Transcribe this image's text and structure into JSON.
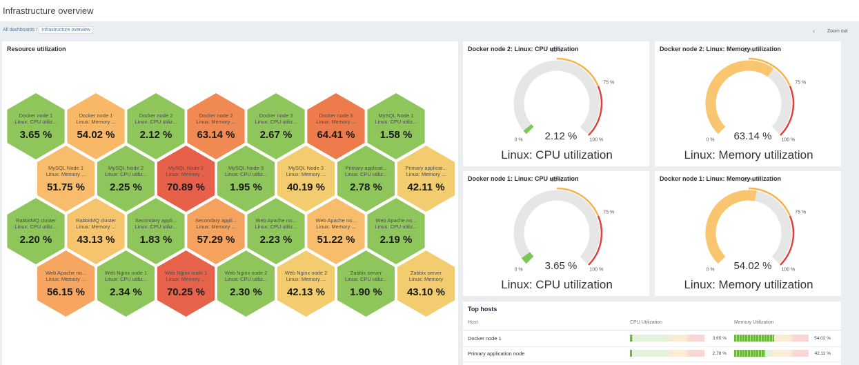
{
  "header": {
    "title": "Infrastructure overview",
    "breadcrumbs": [
      "All dashboards",
      "Infrastructure overview"
    ],
    "breadcrumb_separator": "/",
    "zoom_out": "Zoom out"
  },
  "honeycomb": {
    "title": "Resource utilization",
    "cells": [
      {
        "host": "Docker node 1",
        "item": "Linux: CPU utiliz...",
        "value": 3.65,
        "label": "3.65 %",
        "color": "#8ec65b"
      },
      {
        "host": "Docker node 1",
        "item": "Linux: Memory ...",
        "value": 54.02,
        "label": "54.02 %",
        "color": "#f8b867"
      },
      {
        "host": "Docker node 2",
        "item": "Linux: CPU utiliz...",
        "value": 2.12,
        "label": "2.12 %",
        "color": "#8ec65b"
      },
      {
        "host": "Docker node 2",
        "item": "Linux: Memory ...",
        "value": 63.14,
        "label": "63.14 %",
        "color": "#f08a52"
      },
      {
        "host": "Docker node 3",
        "item": "Linux: CPU utiliz...",
        "value": 2.67,
        "label": "2.67 %",
        "color": "#8ec65b"
      },
      {
        "host": "Docker node 3",
        "item": "Linux: Memory ...",
        "value": 64.41,
        "label": "64.41 %",
        "color": "#ee7b4c"
      },
      {
        "host": "MySQL Node 1",
        "item": "Linux: CPU utiliz...",
        "value": 1.58,
        "label": "1.58 %",
        "color": "#8ec65b"
      },
      {
        "host": "MySQL Node 1",
        "item": "Linux: Memory ...",
        "value": 51.75,
        "label": "51.75 %",
        "color": "#f8bd6c"
      },
      {
        "host": "MySQL Node 2",
        "item": "Linux: CPU utiliz...",
        "value": 2.25,
        "label": "2.25 %",
        "color": "#8ec65b"
      },
      {
        "host": "MySQL Node 2",
        "item": "Linux: Memory ...",
        "value": 70.89,
        "label": "70.89 %",
        "color": "#e6604a"
      },
      {
        "host": "MySQL Node 3",
        "item": "Linux: CPU utiliz...",
        "value": 1.95,
        "label": "1.95 %",
        "color": "#8ec65b"
      },
      {
        "host": "MySQL Node 3",
        "item": "Linux: Memory ...",
        "value": 40.19,
        "label": "40.19 %",
        "color": "#f3cc70"
      },
      {
        "host": "Primary applicat...",
        "item": "Linux: CPU utiliz...",
        "value": 2.78,
        "label": "2.78 %",
        "color": "#8ec65b"
      },
      {
        "host": "Primary applicat...",
        "item": "Linux: Memory ...",
        "value": 42.11,
        "label": "42.11 %",
        "color": "#f3cc70"
      },
      {
        "host": "RabbitMQ cluster",
        "item": "Linux: CPU utiliz...",
        "value": 2.2,
        "label": "2.20 %",
        "color": "#8ec65b"
      },
      {
        "host": "RabbitMQ cluster",
        "item": "Linux: Memory ...",
        "value": 43.13,
        "label": "43.13 %",
        "color": "#f6c46d"
      },
      {
        "host": "Secondary appli...",
        "item": "Linux: CPU utiliz...",
        "value": 1.83,
        "label": "1.83 %",
        "color": "#8ec65b"
      },
      {
        "host": "Secondary appli...",
        "item": "Linux: Memory ...",
        "value": 57.29,
        "label": "57.29 %",
        "color": "#f5a25e"
      },
      {
        "host": "Web Apache no...",
        "item": "Linux: CPU utiliz...",
        "value": 2.23,
        "label": "2.23 %",
        "color": "#8ec65b"
      },
      {
        "host": "Web Apache no...",
        "item": "Linux: Memory ...",
        "value": 51.22,
        "label": "51.22 %",
        "color": "#f8bd6c"
      },
      {
        "host": "Web Apache no...",
        "item": "Linux: CPU utiliz...",
        "value": 2.19,
        "label": "2.19 %",
        "color": "#8ec65b"
      },
      {
        "host": "Web Apache no...",
        "item": "Linux: Memory ...",
        "value": 56.15,
        "label": "56.15 %",
        "color": "#f6a660"
      },
      {
        "host": "Web Nginx node 1",
        "item": "Linux: CPU utiliz...",
        "value": 2.34,
        "label": "2.34 %",
        "color": "#8ec65b"
      },
      {
        "host": "Web Nginx node 1",
        "item": "Linux: Memory ...",
        "value": 70.25,
        "label": "70.25 %",
        "color": "#e7624a"
      },
      {
        "host": "Web Nginx node 2",
        "item": "Linux: CPU utiliz...",
        "value": 2.3,
        "label": "2.30 %",
        "color": "#8ec65b"
      },
      {
        "host": "Web Nginx node 2",
        "item": "Linux: Memory ...",
        "value": 42.13,
        "label": "42.13 %",
        "color": "#f3cc70"
      },
      {
        "host": "Zabbix server",
        "item": "Linux: CPU utiliz...",
        "value": 1.9,
        "label": "1.90 %",
        "color": "#8ec65b"
      },
      {
        "host": "Zabbix server",
        "item": "Linux: Memory",
        "value": 43.1,
        "label": "43.10 %",
        "color": "#f3cc70"
      }
    ]
  },
  "gauges": [
    {
      "title": "Docker node 2: Linux: CPU utilization",
      "value": 2.12,
      "label": "2.12 %",
      "description": "Linux: CPU utilization",
      "color": "#7cc656",
      "min": {
        "value": 0,
        "label": "0 %"
      },
      "max": {
        "value": 100,
        "label": "100 %"
      },
      "thresholds": [
        {
          "value": 50,
          "label": "50 %",
          "color": "#f6b24b"
        },
        {
          "value": 75,
          "label": "75 %",
          "color": "#e0403c"
        }
      ]
    },
    {
      "title": "Docker node 2: Linux: Memory utilization",
      "value": 63.14,
      "label": "63.14 %",
      "description": "Linux: Memory utilization",
      "color": "#f9c66f",
      "min": {
        "value": 0,
        "label": "0 %"
      },
      "max": {
        "value": 100,
        "label": "100 %"
      },
      "thresholds": [
        {
          "value": 50,
          "label": "50 %",
          "color": "#f6b24b"
        },
        {
          "value": 75,
          "label": "75 %",
          "color": "#e0403c"
        }
      ]
    },
    {
      "title": "Docker node 1: Linux: CPU utilization",
      "value": 3.65,
      "label": "3.65 %",
      "description": "Linux: CPU utilization",
      "color": "#7cc656",
      "min": {
        "value": 0,
        "label": "0 %"
      },
      "max": {
        "value": 100,
        "label": "100 %"
      },
      "thresholds": [
        {
          "value": 50,
          "label": "50 %",
          "color": "#f6b24b"
        },
        {
          "value": 75,
          "label": "75 %",
          "color": "#e0403c"
        }
      ]
    },
    {
      "title": "Docker node 1: Linux: Memory utilization",
      "value": 54.02,
      "label": "54.02 %",
      "description": "Linux: Memory utilization",
      "color": "#f9c66f",
      "min": {
        "value": 0,
        "label": "0 %"
      },
      "max": {
        "value": 100,
        "label": "100 %"
      },
      "thresholds": [
        {
          "value": 50,
          "label": "50 %",
          "color": "#f6b24b"
        },
        {
          "value": 75,
          "label": "75 %",
          "color": "#e0403c"
        }
      ]
    }
  ],
  "top_hosts": {
    "title": "Top hosts",
    "columns": [
      "Host",
      "CPU Utilization",
      "Memory Utilization"
    ],
    "rows": [
      {
        "host": "Docker node 1",
        "cpu": 3.65,
        "cpu_label": "3.65 %",
        "memory": 54.02,
        "memory_label": "54.02 %"
      },
      {
        "host": "Primary application node",
        "cpu": 2.78,
        "cpu_label": "2.78 %",
        "memory": 42.11,
        "memory_label": "42.11 %"
      }
    ]
  }
}
